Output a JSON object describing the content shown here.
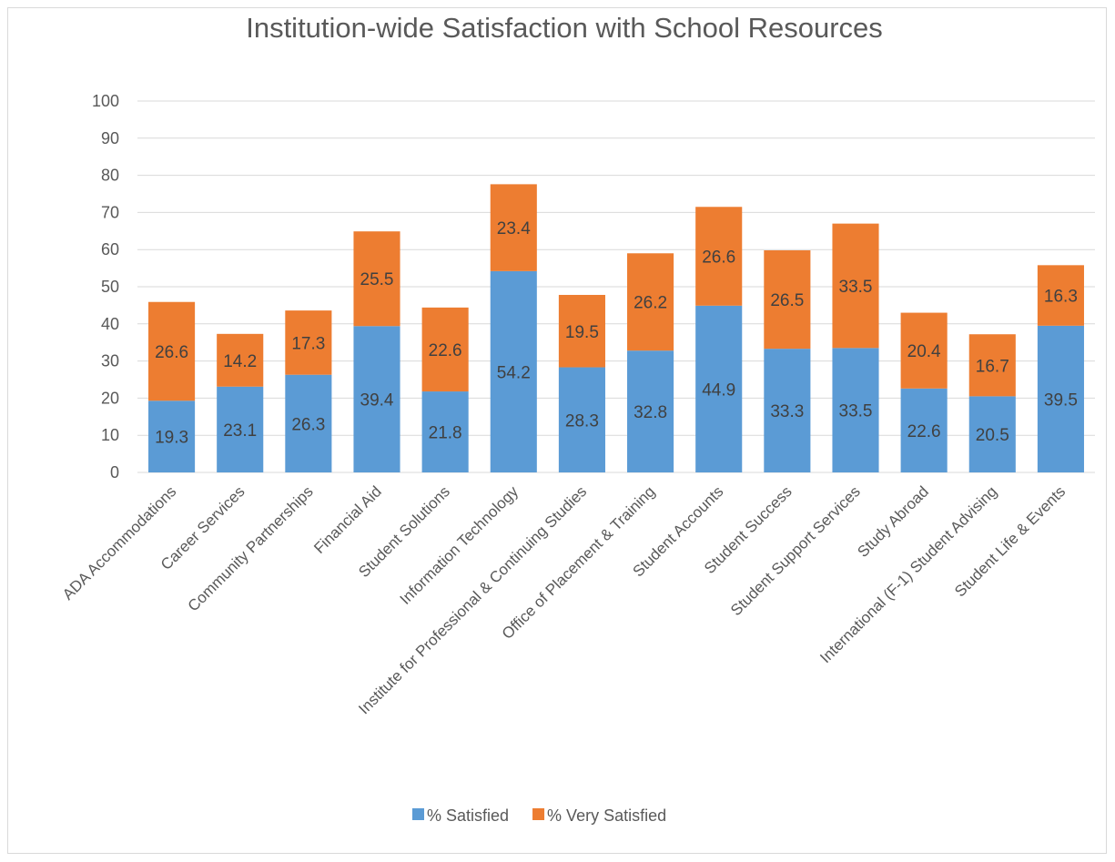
{
  "chart_data": {
    "type": "bar",
    "stacked": true,
    "title": "Institution-wide Satisfaction with School Resources",
    "categories": [
      "ADA Accommodations",
      "Career Services",
      "Community Partnerships",
      "Financial Aid",
      "Student Solutions",
      "Information Technology",
      "Institute for Professional & Continuing Studies",
      "Office of Placement & Training",
      "Student Accounts",
      "Student Success",
      "Student Support Services",
      "Study Abroad",
      "International (F-1) Student Advising",
      "Student Life & Events"
    ],
    "series": [
      {
        "name": "% Satisfied",
        "color": "#5B9BD5",
        "values": [
          19.3,
          23.1,
          26.3,
          39.4,
          21.8,
          54.2,
          28.3,
          32.8,
          44.9,
          33.3,
          33.5,
          22.6,
          20.5,
          39.5
        ]
      },
      {
        "name": "% Very Satisfied",
        "color": "#ED7D31",
        "values": [
          26.6,
          14.2,
          17.3,
          25.5,
          22.6,
          23.4,
          19.5,
          26.2,
          26.6,
          26.5,
          33.5,
          20.4,
          16.7,
          16.3
        ]
      }
    ],
    "ylim": [
      0,
      100
    ],
    "yticks": [
      0,
      10,
      20,
      30,
      40,
      50,
      60,
      70,
      80,
      90,
      100
    ],
    "grid": true,
    "legend": "bottom",
    "xlabel": "",
    "ylabel": ""
  }
}
